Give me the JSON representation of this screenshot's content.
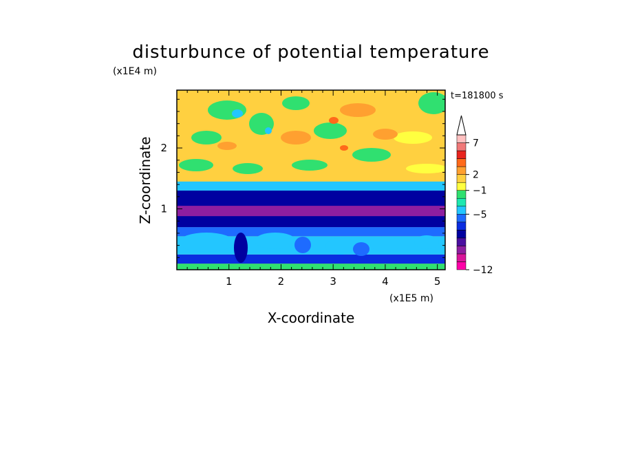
{
  "chart_data": {
    "type": "heatmap",
    "title": "disturbunce of potential temperature",
    "time_label": "t=181800 s",
    "xlabel": "X-coordinate",
    "ylabel": "Z-coordinate",
    "x_unit": "(x1E5 m)",
    "y_unit": "(x1E4 m)",
    "xlim": [
      0,
      5.15
    ],
    "ylim": [
      0,
      2.95
    ],
    "x_ticks": [
      1,
      2,
      3,
      4,
      5
    ],
    "y_ticks": [
      1,
      2
    ],
    "x_tick_labels": [
      "1",
      "2",
      "3",
      "4",
      "5"
    ],
    "y_tick_labels": [
      "1",
      "2"
    ],
    "colorbar": {
      "colors": [
        "#ff00a8",
        "#d9159a",
        "#8e1ea0",
        "#4a0fa0",
        "#0000a0",
        "#0a2ce0",
        "#1e6bff",
        "#23c6ff",
        "#1ee8b0",
        "#30e070",
        "#ffff40",
        "#ffd040",
        "#ffa030",
        "#ff6a1a",
        "#e8241e",
        "#f07878",
        "#ffc0c0"
      ],
      "tick_labels": [
        "-12",
        "-5",
        "-1",
        "2",
        "7"
      ],
      "tick_values": [
        -12,
        -5,
        -1,
        2,
        7
      ],
      "extend_top_arrow": true
    },
    "field_bands": [
      {
        "z_range": [
          0.0,
          0.1
        ],
        "level": "-1..0",
        "color": "#30e070"
      },
      {
        "z_range": [
          0.1,
          0.25
        ],
        "level": "-4",
        "color": "#0a2ce0"
      },
      {
        "z_range": [
          0.25,
          0.55
        ],
        "level": "-2..-3",
        "color": "#23c6ff"
      },
      {
        "z_range": [
          0.55,
          0.7
        ],
        "level": "-4",
        "color": "#1e6bff"
      },
      {
        "z_range": [
          0.7,
          1.3
        ],
        "level": "-5",
        "color": "#0000a0"
      },
      {
        "z_range": [
          0.88,
          1.05
        ],
        "level": "-6",
        "color": "#8e1ea0"
      },
      {
        "z_range": [
          1.3,
          1.45
        ],
        "level": "-2..-3",
        "color": "#23c6ff"
      },
      {
        "z_range": [
          1.45,
          2.95
        ],
        "level": "1..3",
        "color": "#ffd040"
      }
    ]
  }
}
